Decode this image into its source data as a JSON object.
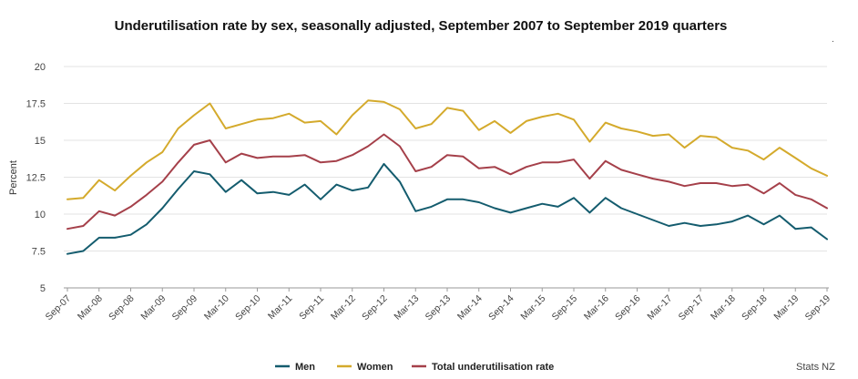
{
  "chart_data": {
    "type": "line",
    "title": "Underutilisation rate by sex, seasonally adjusted, September 2007 to September 2019 quarters",
    "xlabel": "",
    "ylabel": "Percent",
    "ylim": [
      5,
      20
    ],
    "yticks": [
      "5",
      "7.5",
      "10",
      "12.5",
      "15",
      "17.5",
      "20"
    ],
    "grid": true,
    "legend_position": "bottom-center",
    "x": [
      "Sep-07",
      "Dec-07",
      "Mar-08",
      "Jun-08",
      "Sep-08",
      "Dec-08",
      "Mar-09",
      "Jun-09",
      "Sep-09",
      "Dec-09",
      "Mar-10",
      "Jun-10",
      "Sep-10",
      "Dec-10",
      "Mar-11",
      "Jun-11",
      "Sep-11",
      "Dec-11",
      "Mar-12",
      "Jun-12",
      "Sep-12",
      "Dec-12",
      "Mar-13",
      "Jun-13",
      "Sep-13",
      "Dec-13",
      "Mar-14",
      "Jun-14",
      "Sep-14",
      "Dec-14",
      "Mar-15",
      "Jun-15",
      "Sep-15",
      "Dec-15",
      "Mar-16",
      "Jun-16",
      "Sep-16",
      "Dec-16",
      "Mar-17",
      "Jun-17",
      "Sep-17",
      "Dec-17",
      "Mar-18",
      "Jun-18",
      "Sep-18",
      "Dec-18",
      "Mar-19",
      "Jun-19",
      "Sep-19"
    ],
    "tick_labels": [
      "Sep-07",
      "Mar-08",
      "Sep-08",
      "Mar-09",
      "Sep-09",
      "Mar-10",
      "Sep-10",
      "Mar-11",
      "Sep-11",
      "Mar-12",
      "Sep-12",
      "Mar-13",
      "Sep-13",
      "Mar-14",
      "Sep-14",
      "Mar-15",
      "Sep-15",
      "Mar-16",
      "Sep-16",
      "Mar-17",
      "Sep-17",
      "Mar-18",
      "Sep-18",
      "Mar-19",
      "Sep-19"
    ],
    "series": [
      {
        "name": "Men",
        "color": "#145C6E",
        "values": [
          7.3,
          7.5,
          8.4,
          8.4,
          8.6,
          9.3,
          10.4,
          11.7,
          12.9,
          12.7,
          11.5,
          12.3,
          11.4,
          11.5,
          11.3,
          12.0,
          11.0,
          12.0,
          11.6,
          11.8,
          13.4,
          12.2,
          10.2,
          10.5,
          11.0,
          11.0,
          10.8,
          10.4,
          10.1,
          10.4,
          10.7,
          10.5,
          11.1,
          10.1,
          11.1,
          10.4,
          10.0,
          9.6,
          9.2,
          9.4,
          9.2,
          9.3,
          9.5,
          9.9,
          9.3,
          9.9,
          9.0,
          9.1,
          8.3
        ]
      },
      {
        "name": "Women",
        "color": "#D4AA2C",
        "values": [
          11.0,
          11.1,
          12.3,
          11.6,
          12.6,
          13.5,
          14.2,
          15.8,
          16.7,
          17.5,
          15.8,
          16.1,
          16.4,
          16.5,
          16.8,
          16.2,
          16.3,
          15.4,
          16.7,
          17.7,
          17.6,
          17.1,
          15.8,
          16.1,
          17.2,
          17.0,
          15.7,
          16.3,
          15.5,
          16.3,
          16.6,
          16.8,
          16.4,
          14.9,
          16.2,
          15.8,
          15.6,
          15.3,
          15.4,
          14.5,
          15.3,
          15.2,
          14.5,
          14.3,
          13.7,
          14.5,
          13.8,
          13.1,
          12.6
        ]
      },
      {
        "name": "Total underutilisation rate",
        "color": "#A5404A",
        "values": [
          9.0,
          9.2,
          10.2,
          9.9,
          10.5,
          11.3,
          12.2,
          13.5,
          14.7,
          15.0,
          13.5,
          14.1,
          13.8,
          13.9,
          13.9,
          14.0,
          13.5,
          13.6,
          14.0,
          14.6,
          15.4,
          14.6,
          12.9,
          13.2,
          14.0,
          13.9,
          13.1,
          13.2,
          12.7,
          13.2,
          13.5,
          13.5,
          13.7,
          12.4,
          13.6,
          13.0,
          12.7,
          12.4,
          12.2,
          11.9,
          12.1,
          12.1,
          11.9,
          12.0,
          11.4,
          12.1,
          11.3,
          11.0,
          10.4
        ]
      }
    ],
    "legend": [
      "Men",
      "Women",
      "Total underutilisation rate"
    ]
  },
  "source": "Stats NZ",
  "corner_mark": "."
}
